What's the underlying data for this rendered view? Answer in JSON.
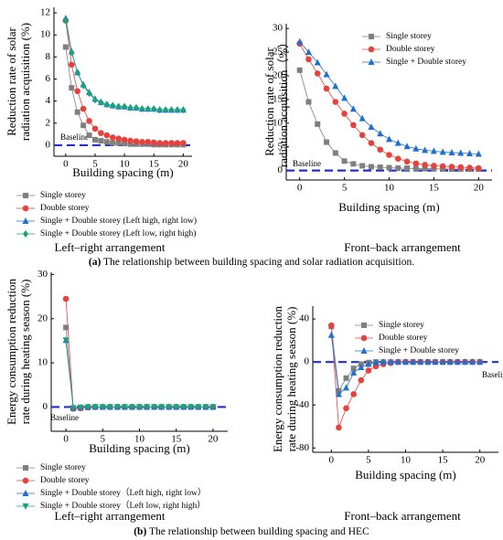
{
  "chart_data": [
    {
      "type": "line",
      "ylabel": [
        "Reduction rate of solar",
        "radiation acquisition (%)"
      ],
      "xlabel": "Building spacing (m)",
      "subtitle": "Left–right arrangement",
      "x": [
        0,
        1,
        2,
        3,
        4,
        5,
        6,
        7,
        8,
        9,
        10,
        11,
        12,
        13,
        14,
        15,
        16,
        17,
        18,
        19,
        20
      ],
      "xlim": [
        -2,
        21.5
      ],
      "xticks": [
        0,
        5,
        10,
        15,
        20
      ],
      "ylim": [
        -1,
        12.5
      ],
      "yticks": [
        0,
        2,
        4,
        6,
        8,
        10,
        12
      ],
      "baseline": {
        "label": "Baseline",
        "value": 0
      },
      "legend": "below",
      "series": [
        {
          "name": "Single storey",
          "color": "#7f7f7f",
          "marker": "square",
          "values": [
            8.9,
            5.2,
            3.0,
            1.8,
            0.9,
            0.5,
            0.4,
            0.3,
            0.2,
            0.2,
            0.15,
            0.1,
            0.1,
            0.1,
            0.1,
            0.05,
            0.05,
            0.05,
            0.05,
            0.05,
            0.05
          ]
        },
        {
          "name": "Double storey",
          "color": "#e8413c",
          "marker": "circle",
          "values": [
            11.3,
            7.3,
            4.9,
            3.3,
            2.2,
            1.5,
            1.1,
            0.9,
            0.7,
            0.6,
            0.5,
            0.4,
            0.35,
            0.3,
            0.3,
            0.25,
            0.2,
            0.2,
            0.2,
            0.2,
            0.2
          ]
        },
        {
          "name": "Single + Double storey (Left high, right low)",
          "color": "#1f6fd1",
          "marker": "triangle",
          "values": [
            11.5,
            8.5,
            6.6,
            5.5,
            4.8,
            4.2,
            3.9,
            3.7,
            3.6,
            3.5,
            3.5,
            3.4,
            3.4,
            3.3,
            3.3,
            3.3,
            3.2,
            3.2,
            3.2,
            3.2,
            3.2
          ]
        },
        {
          "name": "Single + Double storey (Left low, right high)",
          "color": "#1aa37a",
          "marker": "diamond",
          "values": [
            11.3,
            8.4,
            6.6,
            5.4,
            4.7,
            4.1,
            3.9,
            3.7,
            3.6,
            3.5,
            3.5,
            3.4,
            3.4,
            3.3,
            3.3,
            3.3,
            3.2,
            3.2,
            3.2,
            3.2,
            3.2
          ]
        }
      ]
    },
    {
      "type": "line",
      "ylabel": [
        "Reduction rate of solar",
        "radiation acquisition（%）"
      ],
      "xlabel": "Building spacing (m)",
      "subtitle": "Front–back arrangement",
      "x": [
        0,
        1,
        2,
        3,
        4,
        5,
        6,
        7,
        8,
        9,
        10,
        11,
        12,
        13,
        14,
        15,
        16,
        17,
        18,
        19,
        20
      ],
      "xlim": [
        -1.5,
        21.5
      ],
      "xticks": [
        0,
        5,
        10,
        15,
        20
      ],
      "ylim": [
        -2,
        31
      ],
      "yticks": [
        0,
        5,
        10,
        15,
        20,
        25,
        30
      ],
      "baseline": {
        "label": "Baseline",
        "value": 0
      },
      "legend": "top-right",
      "series": [
        {
          "name": "Single storey",
          "color": "#7f7f7f",
          "marker": "square",
          "values": [
            21.2,
            14.5,
            9.8,
            6.0,
            3.7,
            2.0,
            1.4,
            1.0,
            0.8,
            0.7,
            0.6,
            0.5,
            0.5,
            0.4,
            0.4,
            0.4,
            0.3,
            0.3,
            0.3,
            0.3,
            0.3
          ]
        },
        {
          "name": "Double storey",
          "color": "#e8413c",
          "marker": "circle",
          "values": [
            26.8,
            23.5,
            20.5,
            17.3,
            14.5,
            12.0,
            9.6,
            7.5,
            5.8,
            4.4,
            3.3,
            2.5,
            1.9,
            1.5,
            1.2,
            1.0,
            0.9,
            0.8,
            0.7,
            0.6,
            0.5
          ]
        },
        {
          "name": "Single + Double storey",
          "color": "#1f6fd1",
          "marker": "triangle",
          "values": [
            27.2,
            25.0,
            22.8,
            20.3,
            17.8,
            15.3,
            13.0,
            11.0,
            9.2,
            7.8,
            6.6,
            5.8,
            5.1,
            4.6,
            4.3,
            4.1,
            3.9,
            3.8,
            3.7,
            3.6,
            3.5
          ]
        }
      ]
    },
    {
      "type": "line",
      "ylabel": [
        "Energy consumption reduction",
        "rate during heating season (%)"
      ],
      "xlabel": "Building spacing (m)",
      "subtitle": "Left–right arrangement",
      "x": [
        0,
        1,
        2,
        3,
        4,
        5,
        6,
        7,
        8,
        9,
        10,
        11,
        12,
        13,
        14,
        15,
        16,
        17,
        18,
        19,
        20
      ],
      "xlim": [
        -2,
        22
      ],
      "xticks": [
        0,
        5,
        10,
        15,
        20
      ],
      "ylim": [
        -5.5,
        30.5
      ],
      "yticks": [
        0,
        10,
        20,
        30
      ],
      "baseline": {
        "label": "Baseline",
        "value": 0
      },
      "legend": "below",
      "series": [
        {
          "name": "Single storey",
          "color": "#7f7f7f",
          "marker": "square",
          "values": [
            18,
            -0.3,
            -0.2,
            -0.1,
            0,
            0,
            0,
            0,
            0,
            0,
            0,
            0,
            0,
            0,
            0,
            0,
            0,
            0,
            0,
            0,
            0
          ]
        },
        {
          "name": "Double storey",
          "color": "#e8413c",
          "marker": "circle",
          "values": [
            24.5,
            -0.4,
            -0.3,
            -0.1,
            0,
            0,
            0,
            0,
            0,
            0,
            0,
            0,
            0,
            0,
            0,
            0,
            0,
            0,
            0,
            0,
            0
          ]
        },
        {
          "name": "Single + Double storey（Left high, right low）",
          "color": "#1f6fd1",
          "marker": "triangle",
          "values": [
            15.1,
            -0.2,
            -0.1,
            0,
            0,
            0,
            0,
            0,
            0,
            0,
            0,
            0,
            0,
            0,
            0,
            0,
            0,
            0,
            0,
            0,
            0
          ]
        },
        {
          "name": "Single + Double storey（Left low, right high）",
          "color": "#1aa37a",
          "marker": "triangle-down",
          "values": [
            15.1,
            -0.2,
            -0.1,
            0,
            0,
            0,
            0,
            0,
            0,
            0,
            0,
            0,
            0,
            0,
            0,
            0,
            0,
            0,
            0,
            0,
            0
          ]
        }
      ]
    },
    {
      "type": "line",
      "ylabel": [
        "Energy consumption reduction",
        "rate during heating season (%)"
      ],
      "xlabel": "Building spacing (m)",
      "subtitle": "Front–back arrangement",
      "x": [
        0,
        1,
        2,
        3,
        4,
        5,
        6,
        7,
        8,
        9,
        10,
        11,
        12,
        13,
        14,
        15,
        16,
        17,
        18,
        19,
        20
      ],
      "xlim": [
        -2.5,
        22.5
      ],
      "xticks": [
        0,
        5,
        10,
        15,
        20
      ],
      "ylim": [
        -84,
        52
      ],
      "yticks": [
        -80,
        -40,
        0,
        40
      ],
      "baseline": {
        "label": "Baseline",
        "value": 0
      },
      "legend": "top-right",
      "series": [
        {
          "name": "Single storey",
          "color": "#7f7f7f",
          "marker": "square",
          "values": [
            33,
            -27,
            -15,
            -6,
            -2,
            -0.5,
            0,
            0,
            0,
            0,
            0,
            0,
            0,
            0,
            0,
            0,
            0,
            0,
            0,
            0,
            0
          ]
        },
        {
          "name": "Double storey",
          "color": "#e8413c",
          "marker": "circle",
          "values": [
            34,
            -61,
            -43,
            -30,
            -17,
            -8,
            -4,
            -2,
            -1,
            0,
            0,
            0,
            0,
            0,
            0,
            0,
            0,
            0,
            0,
            0,
            0
          ]
        },
        {
          "name": "Single + Double storey",
          "color": "#1f6fd1",
          "marker": "triangle",
          "values": [
            25,
            -30,
            -24,
            -10,
            -5,
            -2,
            -0.5,
            0,
            0,
            0,
            0,
            0,
            0,
            0,
            0,
            0,
            0,
            0,
            0,
            0,
            0
          ]
        }
      ]
    }
  ],
  "figure_captions": [
    {
      "label": "(a)",
      "text": "The relationship between building spacing and solar radiation acquisition."
    },
    {
      "label": "(b)",
      "text": "The relationship between building spacing and HEC"
    }
  ]
}
